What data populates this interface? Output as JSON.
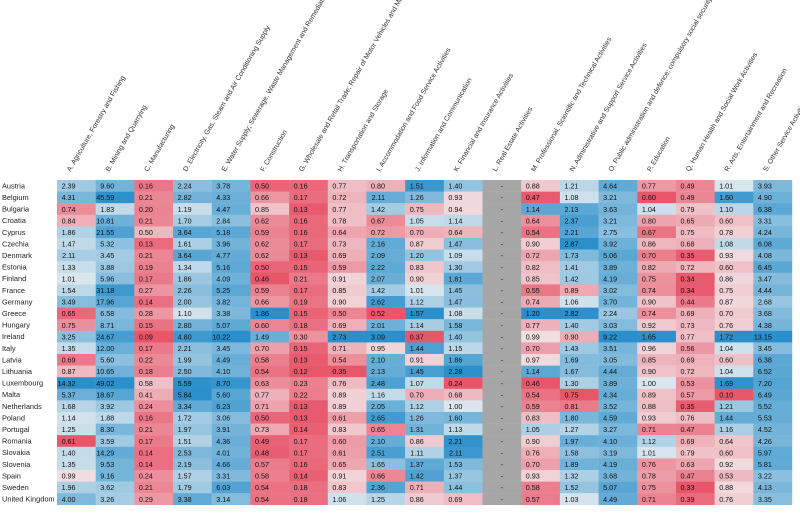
{
  "chart_data": {
    "type": "heatmap",
    "columns": [
      "A. Agriculture, Forestry and Fishing",
      "B. Mining and Quarrying",
      "C. Manufacturing",
      "D. Electricity, Gas, Steam and Air Conditioning Supply",
      "E. Water Supply; Sewerage, Waste Management and Remediation Activities",
      "F. Construction",
      "G. Wholesale and Retail Trade; Repair of Motor Vehicles and Motorcycles",
      "H. Transportation and Storage",
      "I. Accommodation and Food Service Activities",
      "J. Information and Communication",
      "K. Financial and Insurance Activities",
      "L. Real Estate Activities",
      "M. Professional, Scientific and Technical Activities",
      "N. Administrative and Support Service Activities",
      "O. Public administration and defence; compulsory social security",
      "P. Education",
      "Q. Human Health and Social Work Activities",
      "R. Arts, Entertainment and Recreation",
      "S. Other Service Activities"
    ],
    "missing_label": "-",
    "rows": [
      {
        "country": "Austria",
        "values": [
          2.39,
          9.6,
          0.16,
          2.24,
          3.78,
          0.5,
          0.16,
          0.77,
          0.8,
          1.51,
          1.4,
          null,
          0.88,
          1.21,
          4.64,
          0.77,
          0.49,
          1.01,
          3.93
        ]
      },
      {
        "country": "Belgium",
        "values": [
          4.31,
          45.59,
          0.21,
          2.82,
          4.33,
          0.66,
          0.17,
          0.72,
          2.11,
          1.26,
          0.93,
          null,
          0.47,
          1.08,
          3.21,
          0.6,
          0.49,
          1.6,
          4.9
        ]
      },
      {
        "country": "Bulgaria",
        "values": [
          0.74,
          1.83,
          0.2,
          1.19,
          4.47,
          0.85,
          0.13,
          0.77,
          1.42,
          0.75,
          0.94,
          null,
          1.14,
          2.13,
          3.63,
          1.04,
          0.79,
          1.1,
          6.38
        ]
      },
      {
        "country": "Croatia",
        "values": [
          0.84,
          10.81,
          0.21,
          1.7,
          2.84,
          0.62,
          0.16,
          0.78,
          0.67,
          1.05,
          1.14,
          null,
          0.64,
          2.37,
          3.21,
          0.8,
          0.65,
          0.6,
          3.31
        ]
      },
      {
        "country": "Cyprus",
        "values": [
          1.86,
          21.55,
          0.5,
          3.64,
          5.18,
          0.59,
          0.16,
          0.64,
          0.72,
          0.7,
          0.64,
          null,
          0.54,
          2.21,
          2.75,
          0.67,
          0.75,
          0.78,
          4.24
        ]
      },
      {
        "country": "Czechia",
        "values": [
          1.47,
          5.32,
          0.13,
          1.61,
          3.96,
          0.62,
          0.17,
          0.73,
          2.16,
          0.87,
          1.47,
          null,
          0.9,
          2.87,
          3.92,
          0.86,
          0.68,
          1.08,
          6.08
        ]
      },
      {
        "country": "Denmark",
        "values": [
          2.11,
          3.45,
          0.21,
          3.64,
          4.77,
          0.62,
          0.13,
          0.69,
          2.09,
          1.2,
          1.09,
          null,
          0.72,
          1.73,
          5.06,
          0.7,
          0.35,
          0.93,
          4.08
        ]
      },
      {
        "country": "Estonia",
        "values": [
          1.33,
          3.88,
          0.19,
          1.34,
          5.16,
          0.5,
          0.15,
          0.59,
          2.22,
          0.83,
          1.3,
          null,
          0.82,
          1.41,
          3.89,
          0.82,
          0.72,
          0.6,
          6.45
        ]
      },
      {
        "country": "Finland",
        "values": [
          1.01,
          5.96,
          0.17,
          1.86,
          4.09,
          0.46,
          0.21,
          0.91,
          2.07,
          0.9,
          1.81,
          null,
          0.85,
          1.42,
          4.19,
          0.75,
          0.34,
          0.86,
          3.47
        ]
      },
      {
        "country": "France",
        "values": [
          1.54,
          31.18,
          0.27,
          2.26,
          5.25,
          0.59,
          0.17,
          0.85,
          1.42,
          1.01,
          1.45,
          null,
          0.55,
          0.89,
          3.02,
          0.74,
          0.34,
          0.75,
          4.44
        ]
      },
      {
        "country": "Germany",
        "values": [
          3.49,
          17.96,
          0.14,
          2.0,
          3.82,
          0.66,
          0.19,
          0.9,
          2.62,
          1.12,
          1.47,
          null,
          0.74,
          1.06,
          3.7,
          0.9,
          0.44,
          0.87,
          2.68
        ]
      },
      {
        "country": "Greece",
        "values": [
          0.65,
          6.58,
          0.28,
          1.1,
          3.38,
          1.86,
          0.15,
          0.5,
          0.52,
          1.57,
          1.08,
          null,
          1.2,
          2.82,
          2.24,
          0.74,
          0.69,
          0.7,
          3.68
        ]
      },
      {
        "country": "Hungary",
        "values": [
          0.75,
          8.71,
          0.15,
          2.8,
          5.07,
          0.6,
          0.18,
          0.69,
          2.01,
          1.14,
          1.58,
          null,
          0.77,
          1.4,
          3.03,
          0.92,
          0.73,
          0.76,
          4.38
        ]
      },
      {
        "country": "Ireland",
        "values": [
          3.25,
          24.67,
          0.09,
          4.8,
          10.22,
          1.49,
          0.3,
          2.73,
          3.09,
          0.37,
          1.4,
          null,
          0.99,
          0.9,
          9.22,
          1.65,
          0.77,
          1.72,
          13.15
        ]
      },
      {
        "country": "Italy",
        "values": [
          1.35,
          12.0,
          0.17,
          2.21,
          3.45,
          0.7,
          0.15,
          0.71,
          0.95,
          1.44,
          1.15,
          null,
          0.7,
          1.43,
          3.51,
          0.96,
          0.56,
          1.04,
          3.45
        ]
      },
      {
        "country": "Latvia",
        "values": [
          0.69,
          5.6,
          0.22,
          1.99,
          4.49,
          0.58,
          0.13,
          0.54,
          2.1,
          0.91,
          1.86,
          null,
          0.97,
          1.69,
          3.05,
          0.85,
          0.69,
          0.6,
          6.38
        ]
      },
      {
        "country": "Lithuania",
        "values": [
          0.87,
          10.65,
          0.18,
          2.5,
          4.1,
          0.54,
          0.12,
          0.35,
          2.13,
          1.45,
          2.28,
          null,
          1.14,
          1.67,
          4.44,
          0.9,
          0.72,
          1.04,
          6.52
        ]
      },
      {
        "country": "Luxembourg",
        "values": [
          14.32,
          49.02,
          0.58,
          5.59,
          8.7,
          0.63,
          0.23,
          0.76,
          2.48,
          1.07,
          0.24,
          null,
          0.46,
          1.3,
          3.89,
          1.0,
          0.53,
          1.69,
          7.2
        ]
      },
      {
        "country": "Malta",
        "values": [
          5.37,
          18.67,
          0.41,
          5.84,
          5.6,
          0.77,
          0.22,
          0.89,
          1.16,
          0.7,
          0.68,
          null,
          0.54,
          0.75,
          4.34,
          0.89,
          0.57,
          0.1,
          6.49
        ]
      },
      {
        "country": "Netherlands",
        "values": [
          1.68,
          3.92,
          0.24,
          3.34,
          6.23,
          0.71,
          0.13,
          0.89,
          2.05,
          1.12,
          1.0,
          null,
          0.59,
          0.81,
          3.52,
          0.88,
          0.35,
          1.21,
          5.52
        ]
      },
      {
        "country": "Poland",
        "values": [
          1.14,
          1.88,
          0.16,
          1.72,
          3.06,
          0.5,
          0.13,
          0.61,
          2.65,
          1.26,
          1.6,
          null,
          0.83,
          1.8,
          4.59,
          0.93,
          0.76,
          1.44,
          5.53
        ]
      },
      {
        "country": "Portugal",
        "values": [
          1.25,
          8.3,
          0.21,
          1.97,
          3.91,
          0.73,
          0.14,
          0.83,
          0.65,
          1.31,
          1.13,
          null,
          1.05,
          1.27,
          3.27,
          0.71,
          0.47,
          1.16,
          4.52
        ]
      },
      {
        "country": "Romania",
        "values": [
          0.61,
          3.59,
          0.17,
          1.51,
          4.36,
          0.49,
          0.17,
          0.6,
          2.1,
          0.86,
          2.21,
          null,
          0.9,
          1.97,
          4.1,
          1.12,
          0.69,
          0.64,
          4.26
        ]
      },
      {
        "country": "Slovakia",
        "values": [
          1.4,
          14.29,
          0.14,
          2.53,
          4.01,
          0.48,
          0.17,
          0.61,
          2.51,
          1.11,
          2.11,
          null,
          0.76,
          1.58,
          3.19,
          1.01,
          0.79,
          0.6,
          5.97
        ]
      },
      {
        "country": "Slovenia",
        "values": [
          1.35,
          9.53,
          0.14,
          2.19,
          4.66,
          0.57,
          0.16,
          0.65,
          1.65,
          1.37,
          1.53,
          null,
          0.7,
          1.89,
          4.19,
          0.76,
          0.63,
          0.92,
          5.81
        ]
      },
      {
        "country": "Spain",
        "values": [
          0.99,
          9.16,
          0.24,
          1.57,
          3.31,
          0.58,
          0.14,
          0.91,
          0.66,
          1.42,
          1.37,
          null,
          0.93,
          1.32,
          3.68,
          0.78,
          0.47,
          0.53,
          3.22
        ]
      },
      {
        "country": "Sweden",
        "values": [
          1.96,
          3.62,
          0.21,
          1.79,
          6.03,
          0.54,
          0.18,
          0.83,
          2.36,
          0.71,
          1.44,
          null,
          0.58,
          1.52,
          5.07,
          0.75,
          0.33,
          0.88,
          4.13
        ]
      },
      {
        "country": "United Kingdom",
        "values": [
          4.0,
          3.26,
          0.29,
          3.38,
          3.14,
          0.54,
          0.18,
          1.06,
          1.25,
          0.86,
          0.69,
          null,
          0.57,
          1.03,
          4.49,
          0.71,
          0.39,
          0.76,
          3.35
        ]
      }
    ],
    "color_scale": {
      "low": "#e8566a",
      "mid": "#f2f2f2",
      "high": "#2a8fcb",
      "missing": "#a6a6a6",
      "midpoint": 1.0
    }
  }
}
